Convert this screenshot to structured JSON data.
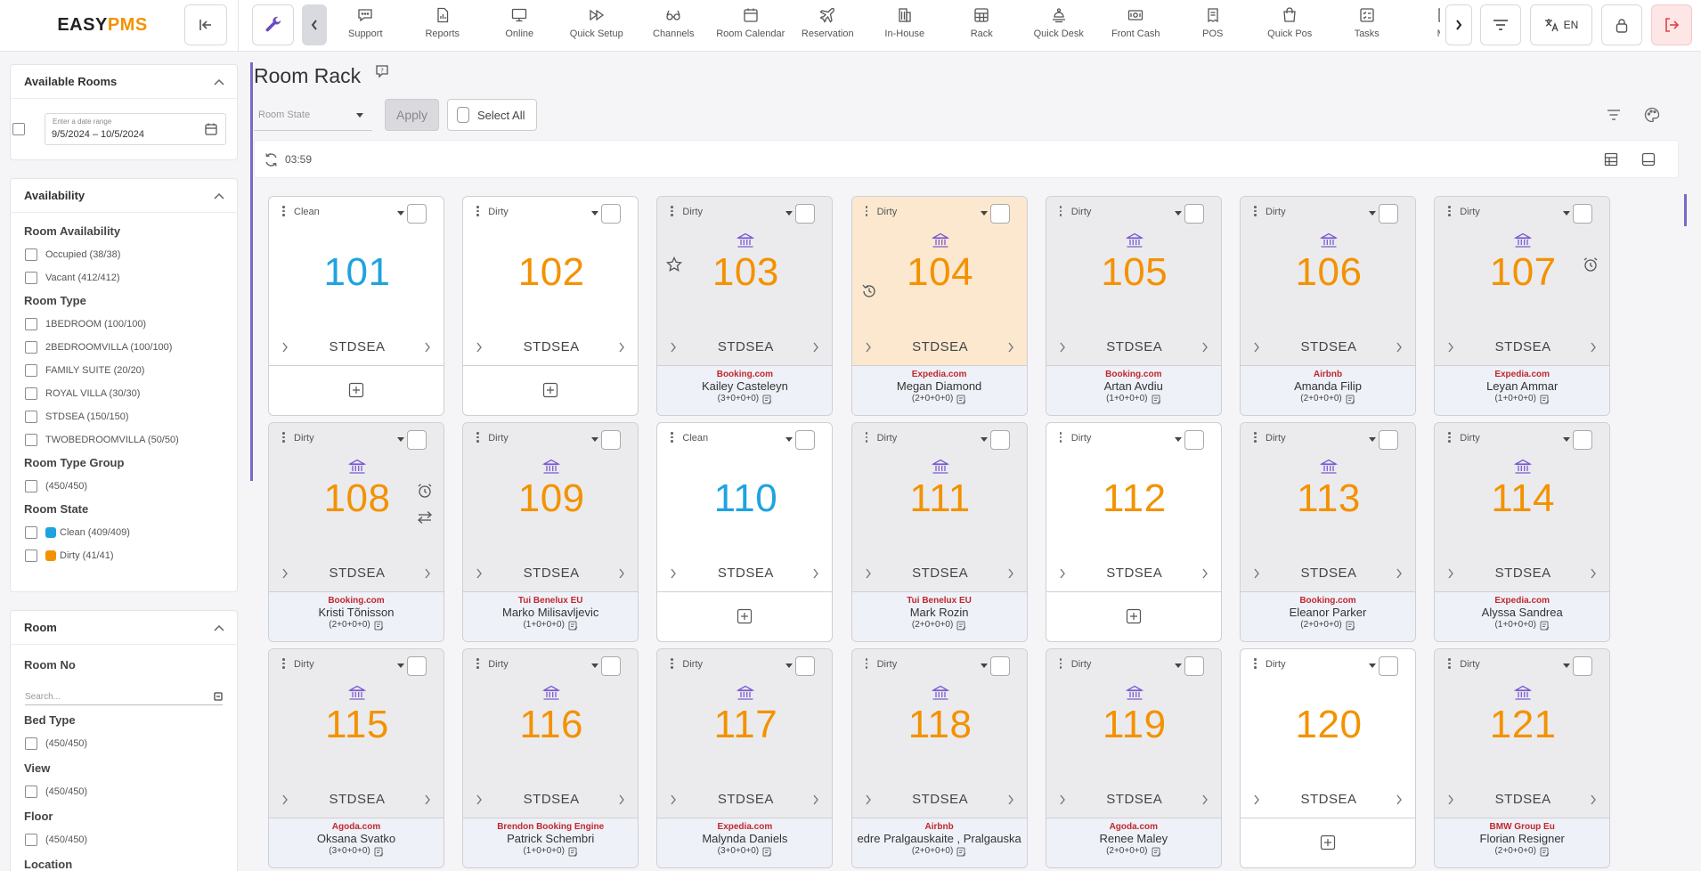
{
  "app": {
    "logo_main": "EASY",
    "logo_accent": "PMS"
  },
  "nav": {
    "items": [
      {
        "label": "Support",
        "icon": "support-icon"
      },
      {
        "label": "Reports",
        "icon": "reports-icon"
      },
      {
        "label": "Online",
        "icon": "monitor-icon"
      },
      {
        "label": "Quick Setup",
        "icon": "fast-forward-icon"
      },
      {
        "label": "Channels",
        "icon": "glasses-icon"
      },
      {
        "label": "Room Calendar",
        "icon": "calendar-icon"
      },
      {
        "label": "Reservation",
        "icon": "plane-icon"
      },
      {
        "label": "In-House",
        "icon": "building-icon"
      },
      {
        "label": "Rack",
        "icon": "grid-icon"
      },
      {
        "label": "Quick Desk",
        "icon": "desk-bell-icon"
      },
      {
        "label": "Front Cash",
        "icon": "cash-icon"
      },
      {
        "label": "POS",
        "icon": "pos-icon"
      },
      {
        "label": "Quick Pos",
        "icon": "bag-icon"
      },
      {
        "label": "Tasks",
        "icon": "tasks-icon"
      },
      {
        "label": "Mo",
        "icon": "more-icon"
      }
    ],
    "language": "EN"
  },
  "sidebar": {
    "available_rooms": {
      "title": "Available Rooms",
      "date_label": "Enter a date range",
      "date_value": "9/5/2024 – 10/5/2024"
    },
    "availability": {
      "title": "Availability",
      "room_availability": {
        "title": "Room Availability",
        "items": [
          "Occupied (38/38)",
          "Vacant (412/412)"
        ]
      },
      "room_type": {
        "title": "Room Type",
        "items": [
          "1BEDROOM (100/100)",
          "2BEDROOMVILLA (100/100)",
          "FAMILY SUITE (20/20)",
          "ROYAL VILLA (30/30)",
          "STDSEA (150/150)",
          "TWOBEDROOMVILLA (50/50)"
        ]
      },
      "room_type_group": {
        "title": "Room Type Group",
        "items": [
          "(450/450)"
        ]
      },
      "room_state": {
        "title": "Room State",
        "items": [
          {
            "label": "Clean (409/409)",
            "color": "#1fa3e0"
          },
          {
            "label": "Dirty (41/41)",
            "color": "#f39200"
          }
        ]
      }
    },
    "room": {
      "title": "Room",
      "room_no": {
        "title": "Room No",
        "placeholder": "Search..."
      },
      "bed_type": {
        "title": "Bed Type",
        "items": [
          "(450/450)"
        ]
      },
      "view": {
        "title": "View",
        "items": [
          "(450/450)"
        ]
      },
      "floor": {
        "title": "Floor",
        "items": [
          "(450/450)"
        ]
      },
      "location": {
        "title": "Location"
      }
    }
  },
  "main": {
    "title": "Room Rack",
    "room_state_placeholder": "Room State",
    "apply_label": "Apply",
    "select_all_label": "Select All",
    "timer": "03:59"
  },
  "colors": {
    "clean": "#1fa3e0",
    "dirty": "#f39200",
    "accent": "#7b68c8",
    "channel": "#c0282d"
  },
  "rooms": [
    {
      "number": "101",
      "state": "Clean",
      "type": "STDSEA",
      "variant": "vacant",
      "num_color": "clean"
    },
    {
      "number": "102",
      "state": "Dirty",
      "type": "STDSEA",
      "variant": "vacant",
      "num_color": "dirty"
    },
    {
      "number": "103",
      "state": "Dirty",
      "type": "STDSEA",
      "variant": "occupied",
      "num_color": "dirty",
      "channel": "Booking.com",
      "guest": "Kailey Casteleyn",
      "occupancy": "(3+0+0+0)",
      "side_icon": "star-icon"
    },
    {
      "number": "104",
      "state": "Dirty",
      "type": "STDSEA",
      "variant": "orange",
      "num_color": "dirty",
      "channel": "Expedia.com",
      "guest": "Megan Diamond",
      "occupancy": "(2+0+0+0)",
      "side_icon": "history-icon"
    },
    {
      "number": "105",
      "state": "Dirty",
      "type": "STDSEA",
      "variant": "occupied",
      "num_color": "dirty",
      "channel": "Booking.com",
      "guest": "Artan Avdiu",
      "occupancy": "(1+0+0+0)"
    },
    {
      "number": "106",
      "state": "Dirty",
      "type": "STDSEA",
      "variant": "occupied",
      "num_color": "dirty",
      "channel": "Airbnb",
      "guest": "Amanda Filip",
      "occupancy": "(2+0+0+0)"
    },
    {
      "number": "107",
      "state": "Dirty",
      "type": "STDSEA",
      "variant": "occupied",
      "num_color": "dirty",
      "channel": "Expedia.com",
      "guest": "Leyan Ammar",
      "occupancy": "(1+0+0+0)",
      "side_icon": "alarm-icon"
    },
    {
      "number": "108",
      "state": "Dirty",
      "type": "STDSEA",
      "variant": "occupied",
      "num_color": "dirty",
      "channel": "Booking.com",
      "guest": "Kristi Tõnisson",
      "occupancy": "(2+0+0+0)",
      "side_icon": "alarm-icon",
      "side_icon2": "swap-icon"
    },
    {
      "number": "109",
      "state": "Dirty",
      "type": "STDSEA",
      "variant": "occupied",
      "num_color": "dirty",
      "channel": "Tui Benelux EU",
      "guest": "Marko Milisavljevic",
      "occupancy": "(1+0+0+0)"
    },
    {
      "number": "110",
      "state": "Clean",
      "type": "STDSEA",
      "variant": "vacant",
      "num_color": "clean"
    },
    {
      "number": "111",
      "state": "Dirty",
      "type": "STDSEA",
      "variant": "occupied",
      "num_color": "dirty",
      "channel": "Tui Benelux EU",
      "guest": "Mark Rozin",
      "occupancy": "(2+0+0+0)"
    },
    {
      "number": "112",
      "state": "Dirty",
      "type": "STDSEA",
      "variant": "vacant",
      "num_color": "dirty"
    },
    {
      "number": "113",
      "state": "Dirty",
      "type": "STDSEA",
      "variant": "occupied",
      "num_color": "dirty",
      "channel": "Booking.com",
      "guest": "Eleanor Parker",
      "occupancy": "(2+0+0+0)"
    },
    {
      "number": "114",
      "state": "Dirty",
      "type": "STDSEA",
      "variant": "occupied",
      "num_color": "dirty",
      "channel": "Expedia.com",
      "guest": "Alyssa Sandrea",
      "occupancy": "(1+0+0+0)"
    },
    {
      "number": "115",
      "state": "Dirty",
      "type": "STDSEA",
      "variant": "occupied",
      "num_color": "dirty",
      "channel": "Agoda.com",
      "guest": "Oksana Svatko",
      "occupancy": "(3+0+0+0)"
    },
    {
      "number": "116",
      "state": "Dirty",
      "type": "STDSEA",
      "variant": "occupied",
      "num_color": "dirty",
      "channel": "Brendon Booking Engine",
      "guest": "Patrick Schembri",
      "occupancy": "(1+0+0+0)"
    },
    {
      "number": "117",
      "state": "Dirty",
      "type": "STDSEA",
      "variant": "occupied",
      "num_color": "dirty",
      "channel": "Expedia.com",
      "guest": "Malynda Daniels",
      "occupancy": "(3+0+0+0)"
    },
    {
      "number": "118",
      "state": "Dirty",
      "type": "STDSEA",
      "variant": "occupied",
      "num_color": "dirty",
      "channel": "Airbnb",
      "guest": "edre Pralgauskaite , Pralgauska",
      "occupancy": "(2+0+0+0)"
    },
    {
      "number": "119",
      "state": "Dirty",
      "type": "STDSEA",
      "variant": "occupied",
      "num_color": "dirty",
      "channel": "Agoda.com",
      "guest": "Renee Maley",
      "occupancy": "(2+0+0+0)"
    },
    {
      "number": "120",
      "state": "Dirty",
      "type": "STDSEA",
      "variant": "vacant",
      "num_color": "dirty"
    },
    {
      "number": "121",
      "state": "Dirty",
      "type": "STDSEA",
      "variant": "occupied",
      "num_color": "dirty",
      "channel": "BMW Group Eu",
      "guest": "Florian Resigner",
      "occupancy": "(2+0+0+0)"
    }
  ]
}
